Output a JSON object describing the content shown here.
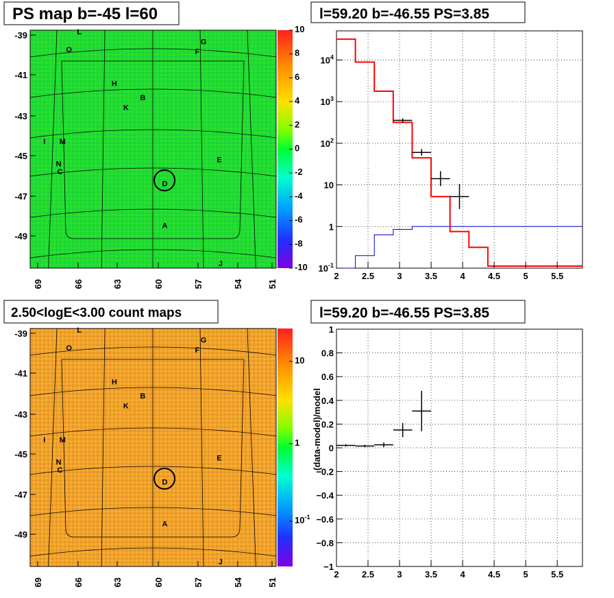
{
  "panels": {
    "top_left_title": "PS map b=-45 l=60",
    "top_right_title": "l=59.20 b=-46.55 PS=3.85",
    "bottom_left_title": "2.50<logE<3.00 count maps",
    "bottom_right_title": "l=59.20 b=-46.55 PS=3.85"
  },
  "colors": {
    "map_green": "#22dd22",
    "map_orange": "#f0a030",
    "data": "#000000",
    "model_red": "#ff0000",
    "model_blue": "#0000cc"
  },
  "chart_data": [
    {
      "type": "heatmap",
      "title": "PS map b=-45 l=60",
      "x_ticks": [
        "69",
        "66",
        "63",
        "60",
        "57",
        "54",
        "51"
      ],
      "y_ticks": [
        "-39",
        "-41",
        "-43",
        "-45",
        "-47",
        "-49"
      ],
      "xlim": [
        69.8,
        50.8
      ],
      "ylim": [
        -50.6,
        -38.7
      ],
      "colorbar": {
        "min": -10,
        "max": 10,
        "ticks": [
          "10",
          "8",
          "6",
          "4",
          "2",
          "0",
          "-2",
          "-4",
          "-6",
          "-8",
          "-10"
        ]
      },
      "source_labels": [
        {
          "name": "L",
          "x": 66.0,
          "y": -38.9
        },
        {
          "name": "O",
          "x": 66.8,
          "y": -39.8
        },
        {
          "name": "G",
          "x": 56.4,
          "y": -39.4
        },
        {
          "name": "F",
          "x": 56.9,
          "y": -39.9
        },
        {
          "name": "H",
          "x": 63.3,
          "y": -41.5
        },
        {
          "name": "B",
          "x": 61.1,
          "y": -42.2
        },
        {
          "name": "K",
          "x": 62.4,
          "y": -42.7
        },
        {
          "name": "I",
          "x": 68.7,
          "y": -44.4
        },
        {
          "name": "M",
          "x": 67.3,
          "y": -44.4
        },
        {
          "name": "N",
          "x": 67.6,
          "y": -45.5
        },
        {
          "name": "C",
          "x": 67.5,
          "y": -45.9
        },
        {
          "name": "E",
          "x": 55.2,
          "y": -45.3
        },
        {
          "name": "D",
          "x": 59.4,
          "y": -46.5
        },
        {
          "name": "A",
          "x": 59.4,
          "y": -48.6
        },
        {
          "name": "J",
          "x": 55.1,
          "y": -50.5
        }
      ]
    },
    {
      "type": "line",
      "title": "l=59.20 b=-46.55 PS=3.85",
      "x_ticks": [
        "2",
        "2.5",
        "3",
        "3.5",
        "4",
        "4.5",
        "5",
        "5.5"
      ],
      "y_ticks": [
        "10^-1",
        "1",
        "10",
        "10^2",
        "10^3",
        "10^4"
      ],
      "xlim": [
        2.0,
        5.9
      ],
      "ylim_log": [
        -1,
        4.7
      ],
      "bin_edges": [
        2.0,
        2.3,
        2.6,
        2.9,
        3.2,
        3.5,
        3.8,
        4.1,
        4.4,
        5.9
      ],
      "series": [
        {
          "values_log": [
            4.5,
            3.95,
            3.25,
            2.5,
            1.65,
            0.72,
            -0.12,
            -0.5,
            -0.95
          ]
        },
        {
          "values_log": [
            -1.6,
            -0.7,
            -0.2,
            -0.07,
            0.0,
            0.0,
            0.0,
            0.0,
            0.0
          ]
        }
      ],
      "points": [
        {
          "x": 3.05,
          "xerr": 0.15,
          "ylog": 2.55,
          "yerr_log": 0.05
        },
        {
          "x": 3.35,
          "xerr": 0.15,
          "ylog": 1.78,
          "yerr_log": 0.08
        },
        {
          "x": 3.65,
          "xerr": 0.15,
          "ylog": 1.15,
          "yerr_log": 0.18
        },
        {
          "x": 3.95,
          "xerr": 0.15,
          "ylog": 0.72,
          "yerr_log": 0.3
        }
      ]
    },
    {
      "type": "heatmap",
      "title": "2.50<logE<3.00 count maps",
      "x_ticks": [
        "69",
        "66",
        "63",
        "60",
        "57",
        "54",
        "51"
      ],
      "y_ticks": [
        "-39",
        "-41",
        "-43",
        "-45",
        "-47",
        "-49"
      ],
      "colorbar": {
        "scale": "log",
        "ticks": [
          "10",
          "1",
          "10^-1"
        ]
      }
    },
    {
      "type": "scatter",
      "title": "l=59.20 b=-46.55 PS=3.85",
      "ylabel": "(data-model)/model",
      "x_ticks": [
        "2",
        "2.5",
        "3",
        "3.5",
        "4",
        "4.5",
        "5",
        "5.5"
      ],
      "y_ticks": [
        "1",
        "0.8",
        "0.6",
        "0.4",
        "0.2",
        "0",
        "−0.2",
        "−0.4",
        "−0.6",
        "−0.8",
        "−1"
      ],
      "xlim": [
        2.0,
        5.9
      ],
      "ylim": [
        -1,
        1
      ],
      "points": [
        {
          "x": 2.15,
          "xerr": 0.15,
          "y": 0.02,
          "yerr": 0.01
        },
        {
          "x": 2.45,
          "xerr": 0.15,
          "y": 0.015,
          "yerr": 0.01
        },
        {
          "x": 2.75,
          "xerr": 0.15,
          "y": 0.025,
          "yerr": 0.02
        },
        {
          "x": 3.05,
          "xerr": 0.15,
          "y": 0.15,
          "yerr": 0.06
        },
        {
          "x": 3.35,
          "xerr": 0.15,
          "y": 0.31,
          "yerr": 0.17
        }
      ]
    }
  ]
}
